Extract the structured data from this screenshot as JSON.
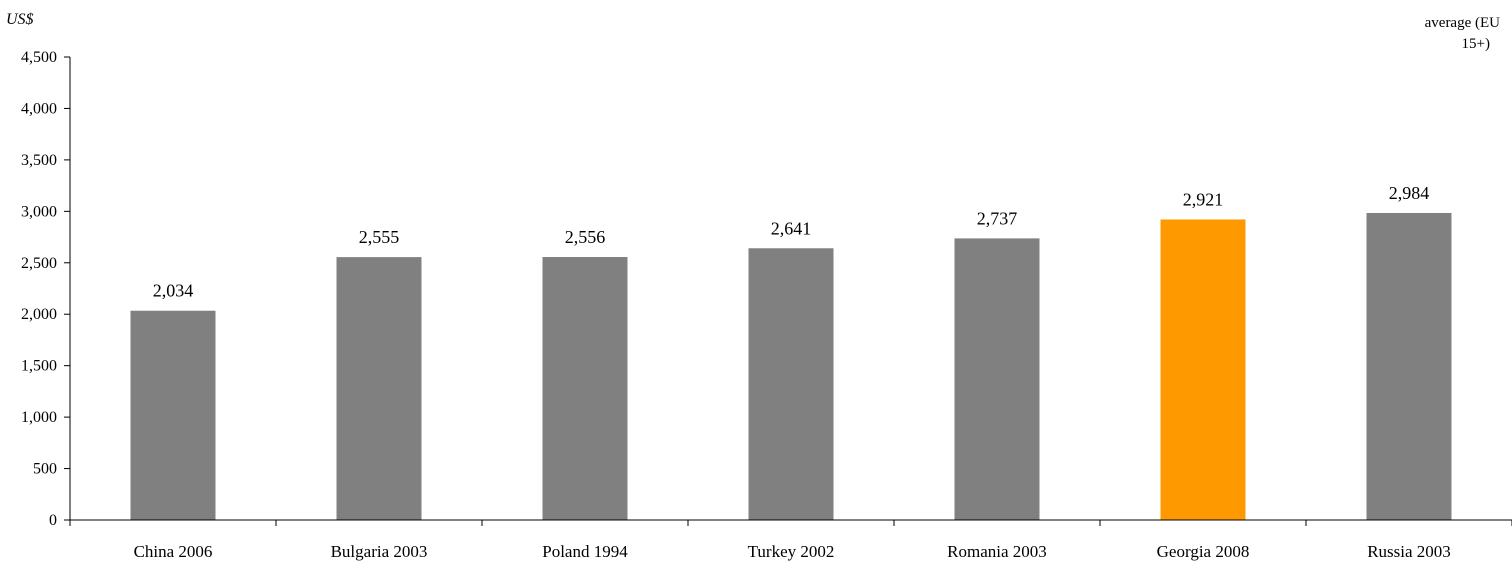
{
  "chart_data": {
    "type": "bar",
    "title": "",
    "ylabel": "US$",
    "xlabel": "",
    "ylim": [
      0,
      4500
    ],
    "yticks": [
      0,
      500,
      1000,
      1500,
      2000,
      2500,
      3000,
      3500,
      4000,
      4500
    ],
    "ytick_labels": [
      "0",
      "500",
      "1,000",
      "1,500",
      "2,000",
      "2,500",
      "3,000",
      "3,500",
      "4,000",
      "4,500"
    ],
    "categories": [
      "China 2006",
      "Bulgaria 2003",
      "Poland 1994",
      "Turkey 2002",
      "Romania 2003",
      "Georgia 2008",
      "Russia 2003"
    ],
    "values": [
      2034,
      2555,
      2556,
      2641,
      2737,
      2921,
      2984
    ],
    "value_labels": [
      "2,034",
      "2,555",
      "2,556",
      "2,641",
      "2,737",
      "2,921",
      "2,984"
    ],
    "highlight_category": "Georgia 2008",
    "grid": false,
    "colors": {
      "bar": "#808080",
      "highlight": "#FF9900",
      "axis": "#000000"
    },
    "annotation": [
      "average (EU",
      "15+)"
    ]
  }
}
